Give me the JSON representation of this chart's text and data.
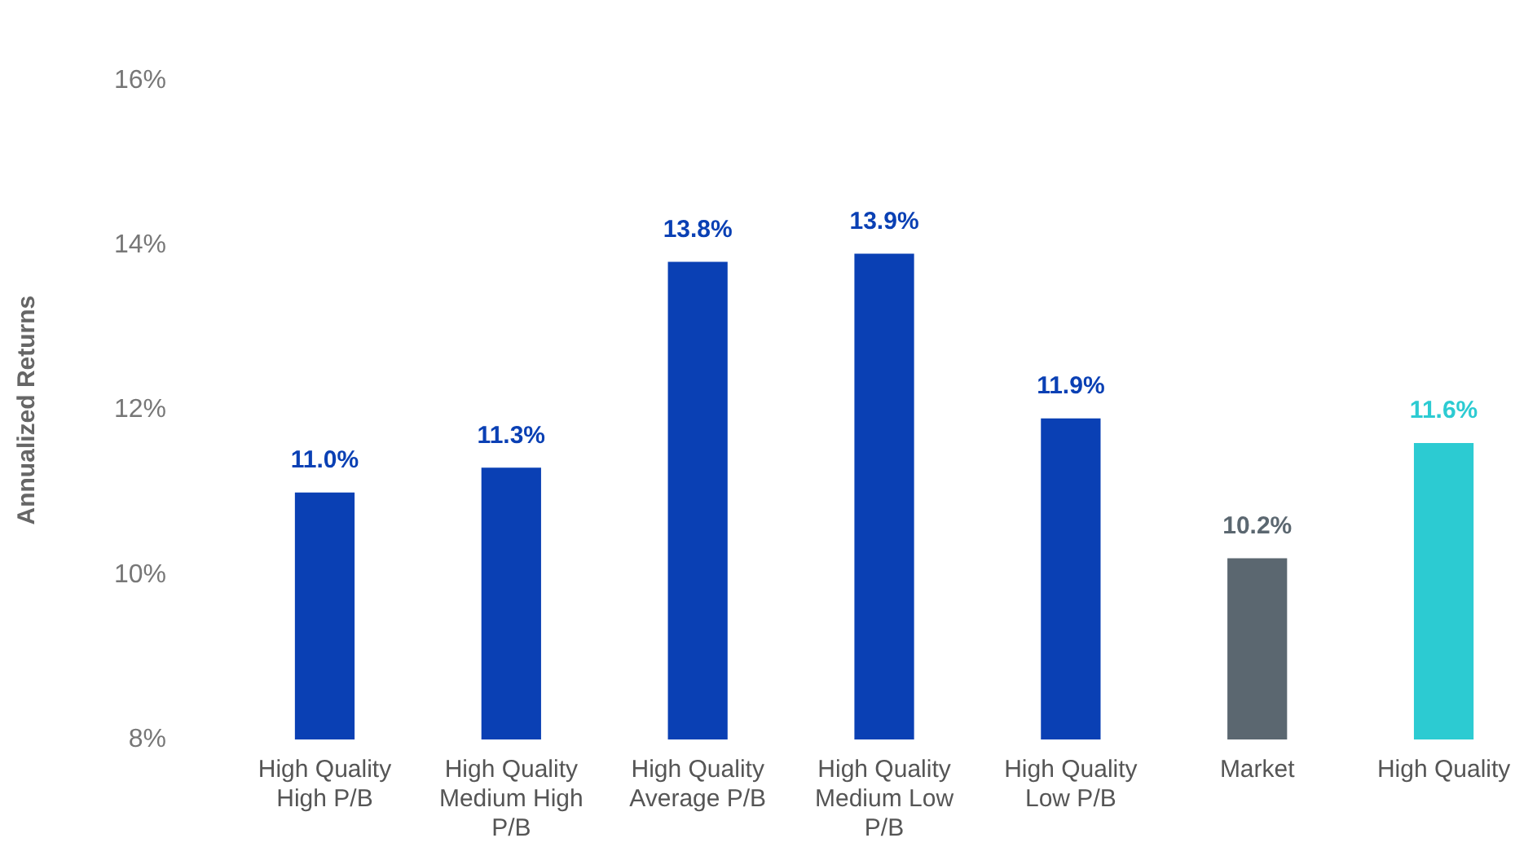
{
  "chart_data": {
    "type": "bar",
    "ylabel": "Annualized Returns",
    "categories": [
      "High Quality High P/B",
      "High Quality Medium High P/B",
      "High Quality Average P/B",
      "High Quality Medium Low P/B",
      "High Quality Low P/B",
      "Market",
      "High Quality"
    ],
    "values": [
      11.0,
      11.3,
      13.8,
      13.9,
      11.9,
      10.2,
      11.6
    ],
    "colors": [
      "#0a40b4",
      "#0a40b4",
      "#0a40b4",
      "#0a40b4",
      "#0a40b4",
      "#5b6770",
      "#2ccbd2"
    ],
    "value_labels": [
      "11.0%",
      "11.3%",
      "13.8%",
      "13.9%",
      "11.9%",
      "10.2%",
      "11.6%"
    ],
    "ylim": [
      8,
      16
    ],
    "yticks": [
      {
        "value": 8,
        "label": "8%"
      },
      {
        "value": 10,
        "label": "10%"
      },
      {
        "value": 12,
        "label": "12%"
      },
      {
        "value": 14,
        "label": "14%"
      },
      {
        "value": 16,
        "label": "16%"
      }
    ],
    "grid": false,
    "legend": false
  }
}
